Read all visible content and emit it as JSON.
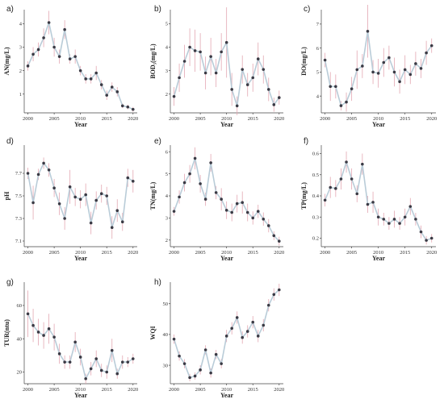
{
  "chart_data": [
    {
      "type": "line",
      "panel": "a)",
      "ylabel": "AN(mg/L)",
      "xlabel": "Year",
      "x": [
        2000,
        2001,
        2002,
        2003,
        2004,
        2005,
        2006,
        2007,
        2008,
        2009,
        2010,
        2011,
        2012,
        2013,
        2014,
        2015,
        2016,
        2017,
        2018,
        2019,
        2020
      ],
      "y": [
        2.2,
        2.7,
        2.9,
        3.4,
        4.05,
        3.0,
        2.6,
        3.75,
        2.5,
        2.6,
        2.0,
        1.65,
        1.65,
        1.9,
        1.4,
        0.95,
        1.3,
        1.1,
        0.5,
        0.45,
        0.35
      ],
      "err": [
        0.2,
        0.3,
        0.3,
        0.4,
        0.5,
        0.4,
        0.3,
        0.4,
        0.2,
        0.3,
        0.2,
        0.2,
        0.2,
        0.3,
        0.2,
        0.2,
        0.2,
        0.2,
        0.1,
        0.1,
        0.1
      ],
      "ylim": [
        0.2,
        4.6
      ],
      "yticks": [
        1,
        2,
        3,
        4
      ],
      "xlim": [
        1999.3,
        2020.8
      ],
      "xticks": [
        2000,
        2005,
        2010,
        2015,
        2020
      ]
    },
    {
      "type": "line",
      "panel": "b)",
      "ylabel": "BOD₅(mg/L)",
      "xlabel": "Year",
      "x": [
        2000,
        2001,
        2002,
        2003,
        2004,
        2005,
        2006,
        2007,
        2008,
        2009,
        2010,
        2011,
        2012,
        2013,
        2014,
        2015,
        2016,
        2017,
        2018,
        2019,
        2020
      ],
      "y": [
        1.9,
        2.7,
        3.4,
        4.0,
        3.85,
        3.8,
        2.9,
        3.6,
        2.9,
        3.8,
        4.2,
        2.2,
        1.5,
        3.05,
        2.4,
        2.7,
        3.5,
        3.05,
        2.2,
        1.55,
        1.85
      ],
      "err": [
        0.4,
        0.6,
        0.7,
        0.8,
        0.9,
        0.8,
        0.7,
        0.8,
        0.6,
        0.8,
        1.5,
        0.7,
        0.4,
        0.6,
        0.5,
        0.6,
        0.7,
        0.6,
        0.5,
        0.3,
        0.3
      ],
      "ylim": [
        1.2,
        5.6
      ],
      "yticks": [
        2,
        3,
        4,
        5
      ],
      "xlim": [
        1999.3,
        2020.8
      ],
      "xticks": [
        2000,
        2005,
        2010,
        2015,
        2020
      ]
    },
    {
      "type": "line",
      "panel": "c)",
      "ylabel": "DO(mg/L)",
      "xlabel": "Year",
      "x": [
        2000,
        2001,
        2002,
        2003,
        2004,
        2005,
        2006,
        2007,
        2008,
        2009,
        2010,
        2011,
        2012,
        2013,
        2014,
        2015,
        2016,
        2017,
        2018,
        2019,
        2020
      ],
      "y": [
        5.5,
        4.4,
        4.4,
        3.6,
        3.75,
        4.3,
        5.1,
        5.25,
        6.7,
        5.0,
        4.95,
        5.4,
        5.6,
        5.0,
        4.6,
        5.1,
        4.9,
        5.35,
        5.15,
        5.8,
        6.1
      ],
      "err": [
        0.3,
        0.6,
        0.5,
        0.2,
        0.4,
        0.5,
        0.8,
        0.5,
        1.1,
        0.5,
        0.6,
        0.6,
        0.5,
        0.6,
        0.5,
        0.6,
        0.4,
        0.5,
        0.4,
        0.5,
        0.3
      ],
      "ylim": [
        3.3,
        7.6
      ],
      "yticks": [
        4,
        5,
        6,
        7
      ],
      "xlim": [
        1999.3,
        2020.8
      ],
      "xticks": [
        2000,
        2005,
        2010,
        2015,
        2020
      ]
    },
    {
      "type": "line",
      "panel": "d)",
      "ylabel": "pH",
      "xlabel": "Year",
      "x": [
        2000,
        2001,
        2002,
        2003,
        2004,
        2005,
        2006,
        2007,
        2008,
        2009,
        2010,
        2011,
        2012,
        2013,
        2014,
        2015,
        2016,
        2017,
        2018,
        2019,
        2020
      ],
      "y": [
        7.7,
        7.44,
        7.69,
        7.79,
        7.73,
        7.57,
        7.43,
        7.3,
        7.58,
        7.49,
        7.47,
        7.51,
        7.26,
        7.46,
        7.52,
        7.5,
        7.22,
        7.37,
        7.27,
        7.66,
        7.63
      ],
      "err": [
        0.05,
        0.15,
        0.05,
        0.05,
        0.06,
        0.08,
        0.1,
        0.1,
        0.15,
        0.08,
        0.08,
        0.1,
        0.1,
        0.08,
        0.08,
        0.08,
        0.1,
        0.1,
        0.08,
        0.08,
        0.1
      ],
      "ylim": [
        7.05,
        7.95
      ],
      "yticks": [
        7.1,
        7.3,
        7.5,
        7.7
      ],
      "xlim": [
        1999.3,
        2020.8
      ],
      "xticks": [
        2000,
        2005,
        2010,
        2015,
        2020
      ]
    },
    {
      "type": "line",
      "panel": "e)",
      "ylabel": "TN(mg/L)",
      "xlabel": "Year",
      "x": [
        2000,
        2001,
        2002,
        2003,
        2004,
        2005,
        2006,
        2007,
        2008,
        2009,
        2010,
        2011,
        2012,
        2013,
        2014,
        2015,
        2016,
        2017,
        2018,
        2019,
        2020
      ],
      "y": [
        3.3,
        3.95,
        4.6,
        5.0,
        5.7,
        4.55,
        3.85,
        5.5,
        4.15,
        3.85,
        3.35,
        3.25,
        3.65,
        3.7,
        3.25,
        3.0,
        3.3,
        2.95,
        2.65,
        2.2,
        1.95
      ],
      "err": [
        0.2,
        0.3,
        0.4,
        0.4,
        0.5,
        0.4,
        0.3,
        0.4,
        0.3,
        0.5,
        0.4,
        0.4,
        0.4,
        0.5,
        0.4,
        0.3,
        0.3,
        0.3,
        0.3,
        0.2,
        0.2
      ],
      "ylim": [
        1.7,
        6.3
      ],
      "yticks": [
        2,
        3,
        4,
        5,
        6
      ],
      "xlim": [
        1999.3,
        2020.8
      ],
      "xticks": [
        2000,
        2005,
        2010,
        2015,
        2020
      ]
    },
    {
      "type": "line",
      "panel": "f)",
      "ylabel": "TP(mg/L)",
      "xlabel": "Year",
      "x": [
        2000,
        2001,
        2002,
        2003,
        2004,
        2005,
        2006,
        2007,
        2008,
        2009,
        2010,
        2011,
        2012,
        2013,
        2014,
        2015,
        2016,
        2017,
        2018,
        2019,
        2020
      ],
      "y": [
        0.38,
        0.44,
        0.435,
        0.48,
        0.56,
        0.48,
        0.41,
        0.55,
        0.36,
        0.37,
        0.3,
        0.29,
        0.27,
        0.29,
        0.27,
        0.3,
        0.35,
        0.29,
        0.23,
        0.19,
        0.2
      ],
      "err": [
        0.03,
        0.05,
        0.04,
        0.05,
        0.05,
        0.05,
        0.04,
        0.05,
        0.04,
        0.05,
        0.04,
        0.03,
        0.03,
        0.04,
        0.03,
        0.04,
        0.04,
        0.03,
        0.03,
        0.02,
        0.02
      ],
      "ylim": [
        0.16,
        0.64
      ],
      "yticks": [
        0.2,
        0.3,
        0.4,
        0.5,
        0.6
      ],
      "xlim": [
        1999.3,
        2020.8
      ],
      "xticks": [
        2000,
        2005,
        2010,
        2015,
        2020
      ]
    },
    {
      "type": "line",
      "panel": "g)",
      "ylabel": "TUR(ntu)",
      "xlabel": "Year",
      "x": [
        2000,
        2001,
        2002,
        2003,
        2004,
        2005,
        2006,
        2007,
        2008,
        2009,
        2010,
        2011,
        2012,
        2013,
        2014,
        2015,
        2016,
        2017,
        2018,
        2019,
        2020
      ],
      "y": [
        55,
        48,
        44,
        42,
        46,
        41,
        31,
        26,
        26,
        38,
        29,
        16,
        22,
        28,
        21,
        20,
        33,
        19,
        26,
        26,
        28
      ],
      "err": [
        14,
        10,
        8,
        8,
        9,
        8,
        6,
        4,
        4,
        6,
        5,
        3,
        4,
        5,
        4,
        4,
        7,
        3,
        4,
        3,
        3
      ],
      "ylim": [
        13,
        74
      ],
      "yticks": [
        20,
        40,
        60
      ],
      "xlim": [
        1999.3,
        2020.8
      ],
      "xticks": [
        2000,
        2005,
        2010,
        2015,
        2020
      ]
    },
    {
      "type": "line",
      "panel": "h)",
      "ylabel": "WQI",
      "xlabel": "Year",
      "x": [
        2000,
        2001,
        2002,
        2003,
        2004,
        2005,
        2006,
        2007,
        2008,
        2009,
        2010,
        2011,
        2012,
        2013,
        2014,
        2015,
        2016,
        2017,
        2018,
        2019,
        2020
      ],
      "y": [
        38.5,
        33,
        30.5,
        26,
        26.5,
        28.5,
        35,
        27.5,
        33.5,
        30.5,
        39.5,
        42,
        45.5,
        39,
        41,
        44,
        39.5,
        43,
        49.5,
        53,
        54.5
      ],
      "err": [
        1.5,
        1.5,
        1.5,
        1.2,
        1.2,
        1.5,
        1.5,
        1.5,
        1.5,
        1.5,
        2,
        2,
        2,
        2,
        2,
        2,
        2,
        2,
        2,
        2,
        2
      ],
      "ylim": [
        24,
        57
      ],
      "yticks": [
        30,
        40,
        50
      ],
      "xlim": [
        1999.3,
        2020.8
      ],
      "xticks": [
        2000,
        2005,
        2010,
        2015,
        2020
      ]
    }
  ],
  "colors": {
    "line": "#b9ccd8",
    "error_bar": "#e3a7b2",
    "point": "#3a3a44",
    "axis": "#444444"
  }
}
